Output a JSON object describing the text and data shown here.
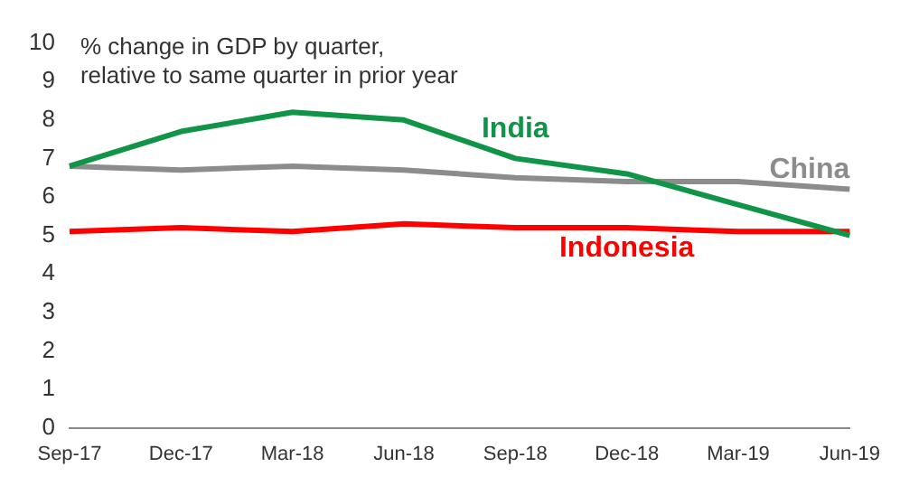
{
  "chart_data": {
    "type": "line",
    "title": "% change in GDP by quarter,\nrelative to same quarter in prior year",
    "categories": [
      "Sep-17",
      "Dec-17",
      "Mar-18",
      "Jun-18",
      "Sep-18",
      "Dec-18",
      "Mar-19",
      "Jun-19"
    ],
    "series": [
      {
        "name": "India",
        "color": "#109447",
        "values": [
          6.8,
          7.7,
          8.2,
          8.0,
          7.0,
          6.6,
          5.8,
          5.0
        ]
      },
      {
        "name": "China",
        "color": "#8c8c8c",
        "values": [
          6.8,
          6.7,
          6.8,
          6.7,
          6.5,
          6.4,
          6.4,
          6.2
        ]
      },
      {
        "name": "Indonesia",
        "color": "#ff0000",
        "values": [
          5.1,
          5.2,
          5.1,
          5.3,
          5.2,
          5.2,
          5.1,
          5.1
        ]
      }
    ],
    "ylim": [
      0,
      10
    ],
    "yticks": [
      0,
      1,
      2,
      3,
      4,
      5,
      6,
      7,
      8,
      9,
      10
    ],
    "grid": false,
    "legend": false,
    "marker": "none",
    "line_style": "solid"
  }
}
